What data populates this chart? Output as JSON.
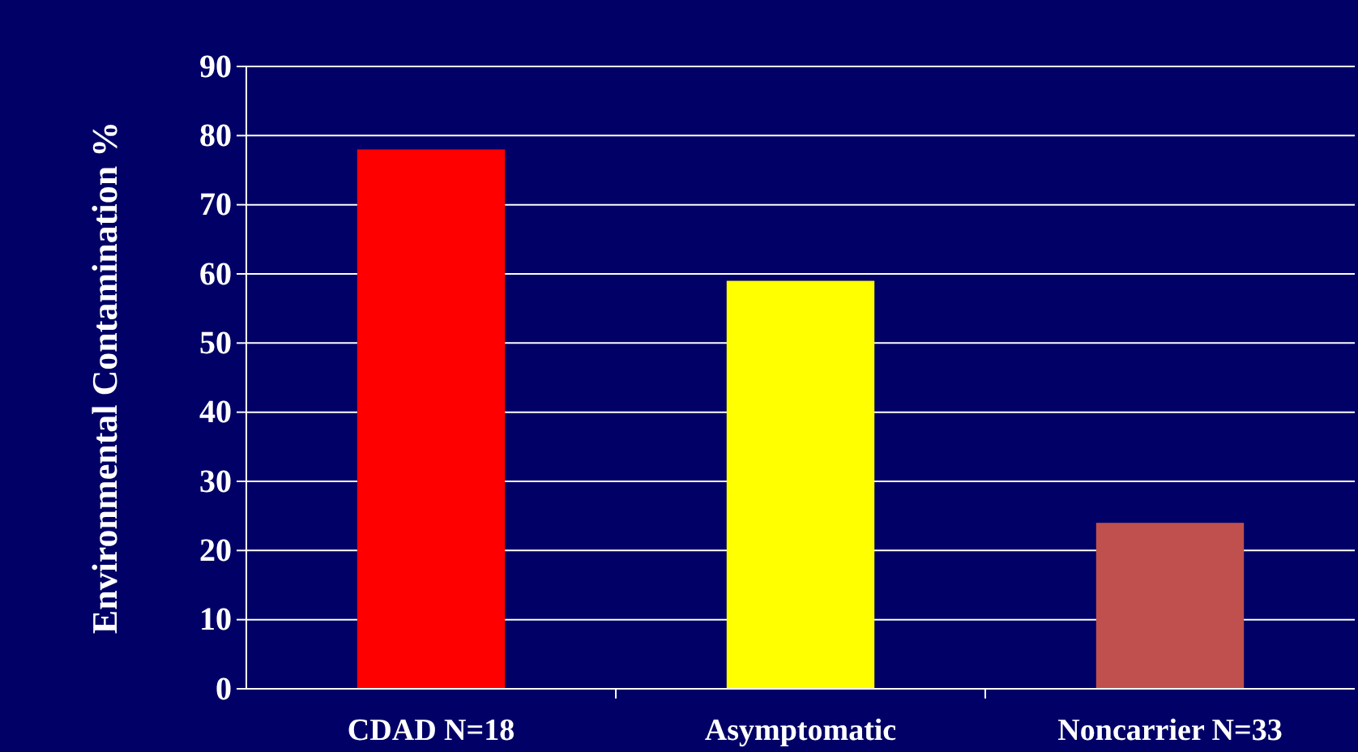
{
  "chart_data": {
    "type": "bar",
    "ylabel": "Environmental Contamination %",
    "categories": [
      "CDAD N=18",
      "Asymptomatic",
      "Noncarrier N=33"
    ],
    "values": [
      78,
      59,
      24
    ],
    "colors": [
      "#ff0000",
      "#ffff00",
      "#c0504d"
    ],
    "ylim": [
      0,
      90
    ],
    "yticks": [
      0,
      10,
      20,
      30,
      40,
      50,
      60,
      70,
      80,
      90
    ],
    "grid": "y"
  }
}
